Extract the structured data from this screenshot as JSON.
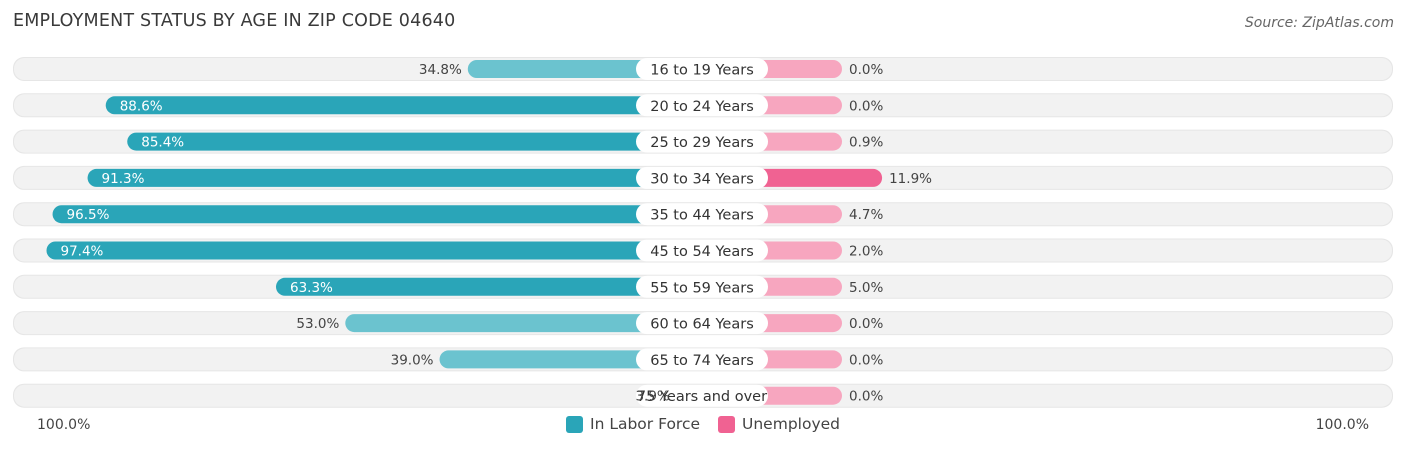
{
  "title": "EMPLOYMENT STATUS BY AGE IN ZIP CODE 04640",
  "source": "Source: ZipAtlas.com",
  "colors": {
    "labor_dark": "#2aa5b8",
    "labor_light": "#6bc3cf",
    "unemp_dark": "#f06292",
    "unemp_light": "#f7a6bf",
    "row_bg": "#f2f2f2"
  },
  "axis": {
    "left_label": "100.0%",
    "right_label": "100.0%"
  },
  "legend": [
    {
      "label": "In Labor Force",
      "color": "#2aa5b8"
    },
    {
      "label": "Unemployed",
      "color": "#f06292"
    }
  ],
  "chart_data": {
    "type": "bar",
    "orientation": "diverging-horizontal",
    "categories": [
      "16 to 19 Years",
      "20 to 24 Years",
      "25 to 29 Years",
      "30 to 34 Years",
      "35 to 44 Years",
      "45 to 54 Years",
      "55 to 59 Years",
      "60 to 64 Years",
      "65 to 74 Years",
      "75 Years and over"
    ],
    "series": [
      {
        "name": "In Labor Force",
        "values": [
          34.8,
          88.6,
          85.4,
          91.3,
          96.5,
          97.4,
          63.3,
          53.0,
          39.0,
          3.9
        ],
        "labels": [
          "34.8%",
          "88.6%",
          "85.4%",
          "91.3%",
          "96.5%",
          "97.4%",
          "63.3%",
          "53.0%",
          "39.0%",
          "3.9%"
        ]
      },
      {
        "name": "Unemployed",
        "values": [
          0.0,
          0.0,
          0.9,
          11.9,
          4.7,
          2.0,
          5.0,
          0.0,
          0.0,
          0.0
        ],
        "labels": [
          "0.0%",
          "0.0%",
          "0.9%",
          "11.9%",
          "4.7%",
          "2.0%",
          "5.0%",
          "0.0%",
          "0.0%",
          "0.0%"
        ]
      }
    ],
    "xlim": [
      -100,
      100
    ],
    "legend_position": "bottom-center"
  }
}
